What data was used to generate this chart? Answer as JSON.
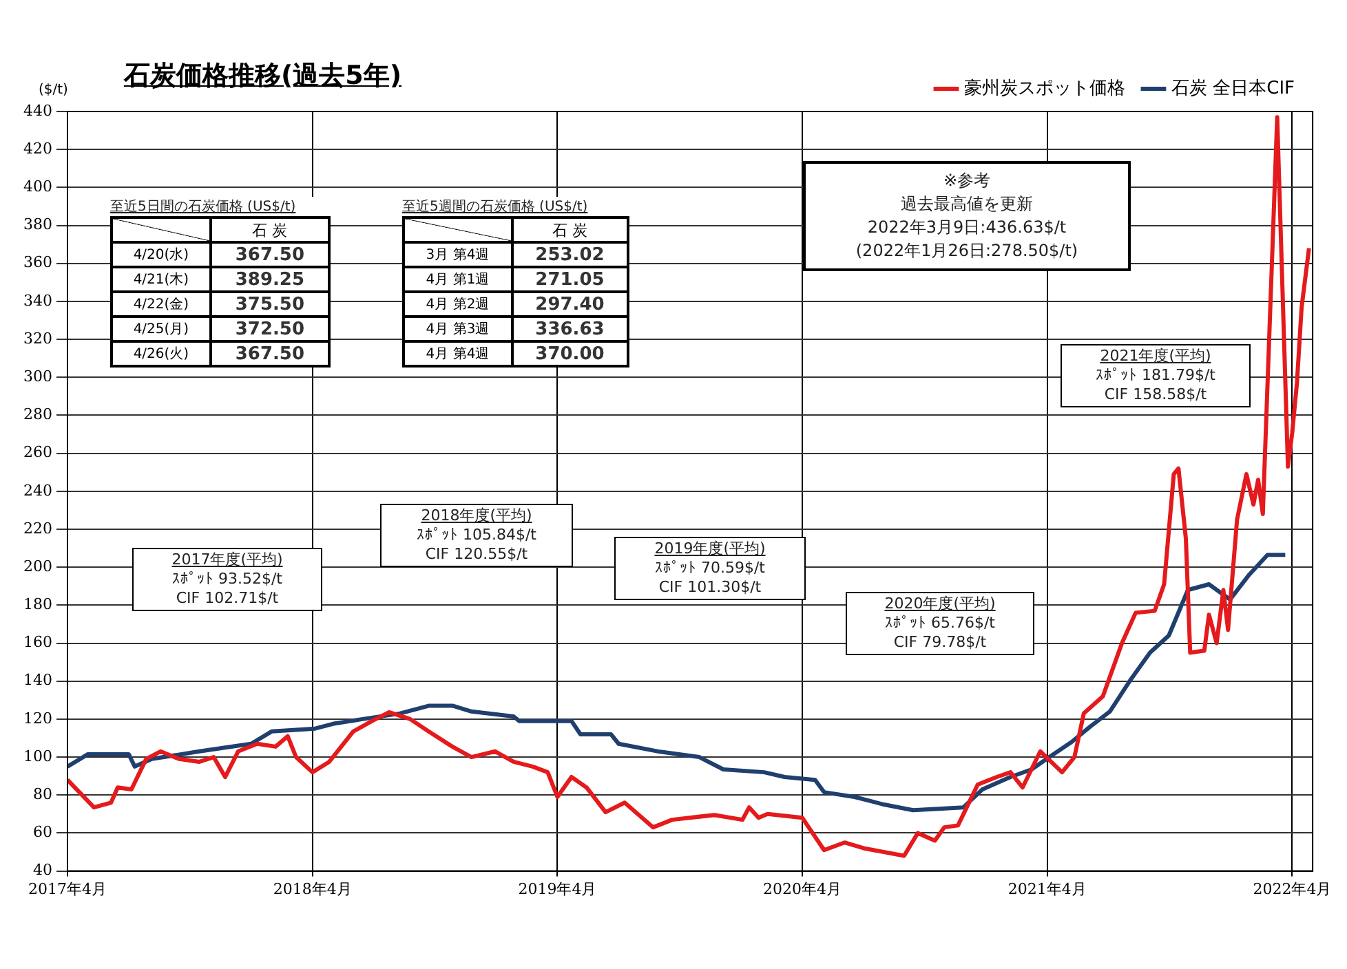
{
  "chart_data": {
    "type": "line",
    "title": "石炭価格推移(過去5年)",
    "ylabel": "($/t)",
    "xlim": [
      "2017-04",
      "2022-05"
    ],
    "xticks": [
      {
        "value": "2017-04",
        "label": "2017年4月"
      },
      {
        "value": "2018-04",
        "label": "2018年4月"
      },
      {
        "value": "2019-04",
        "label": "2019年4月"
      },
      {
        "value": "2020-04",
        "label": "2020年4月"
      },
      {
        "value": "2021-04",
        "label": "2021年4月"
      },
      {
        "value": "2022-04",
        "label": "2022年4月"
      }
    ],
    "ylim": [
      40,
      440
    ],
    "yticks": [
      40,
      60,
      80,
      100,
      120,
      140,
      160,
      180,
      200,
      220,
      240,
      260,
      280,
      300,
      320,
      340,
      360,
      380,
      400,
      420,
      440
    ],
    "grid": true,
    "legend": "top right",
    "marker": "none",
    "line_style": "solid",
    "series": [
      {
        "name": "豪州炭スポット価格",
        "color": "#e41a1c",
        "x": [
          "2017-04-01",
          "2017-05-10",
          "2017-06-05",
          "2017-06-15",
          "2017-07-05",
          "2017-07-27",
          "2017-08-18",
          "2017-09-15",
          "2017-10-15",
          "2017-11-06",
          "2017-11-23",
          "2017-12-12",
          "2018-01-10",
          "2018-02-07",
          "2018-02-25",
          "2018-03-07",
          "2018-04-01",
          "2018-04-26",
          "2018-06-01",
          "2018-06-29",
          "2018-07-24",
          "2018-08-25",
          "2018-09-22",
          "2018-10-27",
          "2018-11-25",
          "2018-12-30",
          "2019-01-27",
          "2019-02-25",
          "2019-03-17",
          "2019-04-01",
          "2019-04-22",
          "2019-05-14",
          "2019-06-12",
          "2019-07-10",
          "2019-08-22",
          "2019-09-20",
          "2019-11-22",
          "2020-01-03",
          "2020-01-13",
          "2020-01-27",
          "2020-02-10",
          "2020-04-01",
          "2020-05-03",
          "2020-06-03",
          "2020-07-01",
          "2020-08-31",
          "2020-09-21",
          "2020-10-16",
          "2020-10-30",
          "2020-11-20",
          "2020-12-19",
          "2021-01-17",
          "2021-02-07",
          "2021-02-25",
          "2021-03-21",
          "2021-04-23",
          "2021-05-11",
          "2021-05-25",
          "2021-06-23",
          "2021-07-21",
          "2021-08-11",
          "2021-09-09",
          "2021-09-23",
          "2021-10-07",
          "2021-10-14",
          "2021-10-25",
          "2021-11-01",
          "2021-11-22",
          "2021-11-29",
          "2021-12-10",
          "2021-12-20",
          "2021-12-27",
          "2022-01-10",
          "2022-01-24",
          "2022-02-04",
          "2022-02-11",
          "2022-02-18",
          "2022-03-09",
          "2022-03-25",
          "2022-04-01",
          "2022-04-08",
          "2022-04-15",
          "2022-04-26"
        ],
        "values": [
          88,
          73.5,
          76,
          84,
          83,
          99,
          103,
          99,
          97.5,
          100,
          89.5,
          103,
          107,
          105.5,
          111,
          100,
          92,
          97.5,
          113.5,
          119,
          123.6,
          120,
          113.5,
          105.5,
          100,
          103,
          97.5,
          95,
          92,
          79,
          89.5,
          84,
          71,
          76,
          63,
          67,
          69.5,
          67,
          73.5,
          68,
          70,
          68,
          51,
          55,
          52,
          48,
          60,
          56,
          63,
          64,
          85.5,
          89.5,
          92,
          84,
          103,
          92,
          100,
          123,
          132,
          160,
          176,
          177,
          191,
          249,
          252,
          215,
          155,
          156,
          175,
          160,
          188,
          167,
          225,
          249,
          233,
          246,
          228,
          437,
          253,
          271,
          297,
          337,
          368
        ]
      },
      {
        "name": "石炭 全日本CIF",
        "color": "#1f3f6e",
        "x": [
          "2017-04-01",
          "2017-05-01",
          "2017-07-01",
          "2017-07-10",
          "2017-08-05",
          "2017-10-15",
          "2018-01-01",
          "2018-02-01",
          "2018-04-05",
          "2018-05-01",
          "2018-06-15",
          "2018-08-10",
          "2018-09-22",
          "2018-10-28",
          "2018-11-25",
          "2019-01-27",
          "2019-02-05",
          "2019-04-22",
          "2019-05-05",
          "2019-06-20",
          "2019-07-01",
          "2019-09-02",
          "2019-10-30",
          "2019-12-05",
          "2020-02-05",
          "2020-03-05",
          "2020-04-20",
          "2020-05-03",
          "2020-06-18",
          "2020-08-01",
          "2020-09-14",
          "2020-11-28",
          "2020-12-26",
          "2021-02-07",
          "2021-03-08",
          "2021-04-04",
          "2021-05-07",
          "2021-06-04",
          "2021-07-03",
          "2021-08-04",
          "2021-09-02",
          "2021-09-30",
          "2021-10-28",
          "2021-11-29",
          "2021-12-30",
          "2022-01-28",
          "2022-02-25",
          "2022-03-21"
        ],
        "values": [
          95,
          101.5,
          101.5,
          95,
          99,
          103,
          107,
          113.5,
          115,
          117.5,
          120,
          123,
          127,
          127,
          124,
          121.4,
          119,
          119,
          112,
          112,
          107,
          102.8,
          100,
          93.5,
          92,
          89.5,
          88,
          81.5,
          79,
          75,
          72,
          73.5,
          83,
          89.5,
          93.5,
          100,
          108,
          116,
          124,
          141,
          155,
          164,
          188,
          191,
          183,
          196,
          206.5,
          206.5
        ]
      }
    ],
    "annotations": [
      "至近5日間の石炭価格 (US$/t)",
      "石 炭",
      "4/20(水)",
      "367.50",
      "4/21(木)",
      "389.25",
      "4/22(金)",
      "375.50",
      "4/25(月)",
      "372.50",
      "4/26(火)",
      "367.50",
      "至近5週間の石炭価格 (US$/t)",
      "石 炭",
      "3月 第4週",
      "253.02",
      "4月 第1週",
      "271.05",
      "4月 第2週",
      "297.40",
      "4月 第3週",
      "336.63",
      "4月 第4週",
      "370.00",
      "※参考",
      "過去最高値を更新",
      "2022年3月9日:436.63$/t",
      "(2022年1月26日:278.50$/t)",
      "2017年度(平均)",
      "ｽﾎﾟｯﾄ 93.52$/t",
      "CIF 102.71$/t",
      "2018年度(平均)",
      "ｽﾎﾟｯﾄ 105.84$/t",
      "CIF 120.55$/t",
      "2019年度(平均)",
      "ｽﾎﾟｯﾄ 70.59$/t",
      "CIF 101.30$/t",
      "2020年度(平均)",
      "ｽﾎﾟｯﾄ 65.76$/t",
      "CIF 79.78$/t",
      "2021年度(平均)",
      "ｽﾎﾟｯﾄ 181.79$/t",
      "CIF 158.58$/t"
    ]
  }
}
